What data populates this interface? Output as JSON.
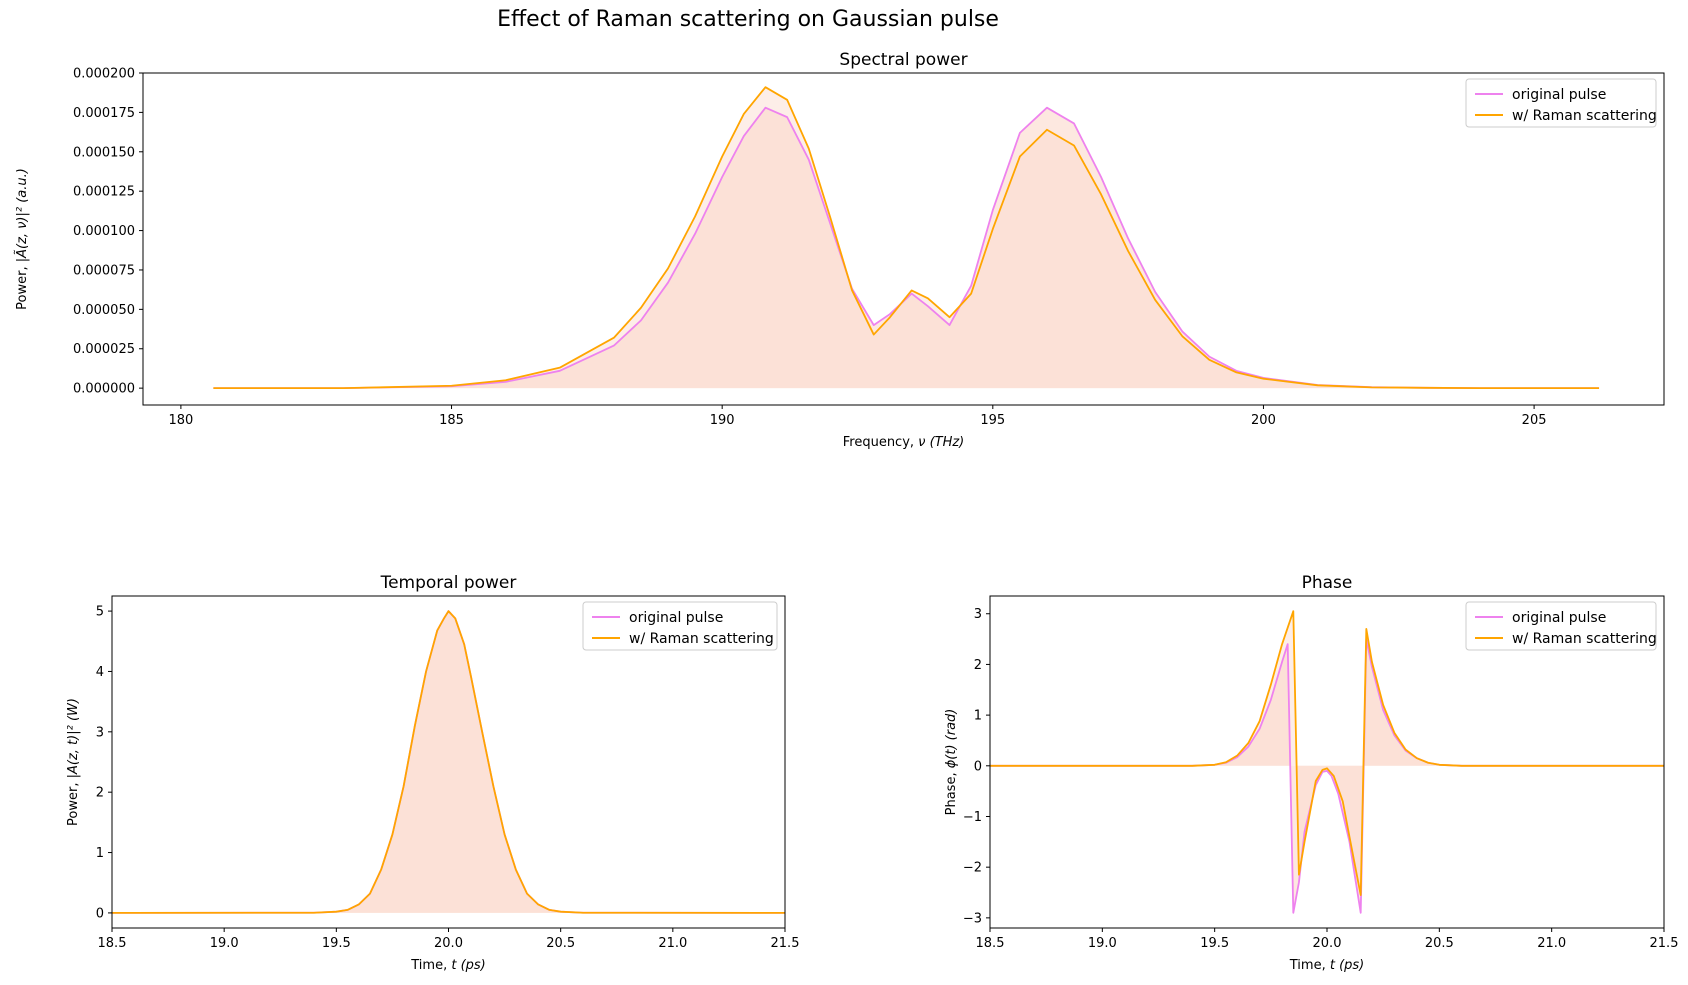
{
  "figure": {
    "suptitle": "Effect of Raman scattering on Gaussian pulse",
    "colors": {
      "original": "#ee82ee",
      "raman": "#ffa500",
      "fill": "#fbd9cc"
    }
  },
  "chart_data": [
    {
      "id": "spectral",
      "type": "line",
      "title": "Spectral power",
      "xlabel_prefix": "Frequency, ",
      "xlabel_math": "ν (THz)",
      "ylabel_prefix": "Power, ",
      "ylabel_math": "|Ã(z, ν)|² (a.u.)",
      "xlim": [
        179.3,
        207.4
      ],
      "ylim": [
        -1.07e-05,
        0.0002
      ],
      "xticks": [
        180,
        185,
        190,
        195,
        200,
        205
      ],
      "yticks": [
        0,
        2.5e-05,
        5e-05,
        7.5e-05,
        0.0001,
        0.000125,
        0.00015,
        0.000175,
        0.0002
      ],
      "ytick_labels": [
        "0.000000",
        "0.000025",
        "0.000050",
        "0.000075",
        "0.000100",
        "0.000125",
        "0.000150",
        "0.000175",
        "0.000200"
      ],
      "legend": {
        "position": "upper right",
        "labels": [
          "original pulse",
          "w/ Raman scattering"
        ]
      },
      "series": [
        {
          "name": "original pulse",
          "color": "#ee82ee",
          "x": [
            180.6,
            183,
            185,
            186,
            187,
            188,
            188.5,
            189,
            189.5,
            190,
            190.4,
            190.8,
            191.2,
            191.6,
            192,
            192.4,
            192.8,
            193.1,
            193.5,
            193.8,
            194.2,
            194.6,
            195,
            195.5,
            196,
            196.5,
            197,
            197.5,
            198,
            198.5,
            199,
            199.5,
            200,
            201,
            202,
            203,
            204,
            206.2
          ],
          "y": [
            0,
            0,
            1.2e-06,
            4e-06,
            1.1e-05,
            2.7e-05,
            4.3e-05,
            6.7e-05,
            9.8e-05,
            0.000134,
            0.00016,
            0.000178,
            0.000172,
            0.000145,
            0.000104,
            6.3e-05,
            4e-05,
            4.7e-05,
            6e-05,
            5.2e-05,
            4e-05,
            6.5e-05,
            0.000113,
            0.000162,
            0.000178,
            0.000168,
            0.000134,
            9.5e-05,
            6.1e-05,
            3.6e-05,
            2e-05,
            1.1e-05,
            6.5e-06,
            2e-06,
            6e-07,
            2e-07,
            0,
            0
          ]
        },
        {
          "name": "w/ Raman scattering",
          "color": "#ffa500",
          "x": [
            180.6,
            183,
            185,
            186,
            187,
            188,
            188.5,
            189,
            189.5,
            190,
            190.4,
            190.8,
            191.2,
            191.6,
            192,
            192.4,
            192.8,
            193.1,
            193.5,
            193.8,
            194.2,
            194.6,
            195,
            195.5,
            196,
            196.5,
            197,
            197.5,
            198,
            198.5,
            199,
            199.5,
            200,
            201,
            202,
            203,
            204,
            206.2
          ],
          "y": [
            0,
            0,
            1.5e-06,
            5e-06,
            1.3e-05,
            3.2e-05,
            5.1e-05,
            7.6e-05,
            0.000109,
            0.000147,
            0.000174,
            0.000191,
            0.000183,
            0.000152,
            0.000108,
            6.2e-05,
            3.4e-05,
            4.5e-05,
            6.2e-05,
            5.7e-05,
            4.5e-05,
            6e-05,
            0.000101,
            0.000147,
            0.000164,
            0.000154,
            0.000123,
            8.7e-05,
            5.6e-05,
            3.3e-05,
            1.8e-05,
            1e-05,
            6e-06,
            1.8e-06,
            5e-07,
            2e-07,
            0,
            0
          ]
        }
      ]
    },
    {
      "id": "temporal",
      "type": "line",
      "title": "Temporal power",
      "xlabel_prefix": "Time, ",
      "xlabel_math": "t (ps)",
      "ylabel_prefix": "Power, ",
      "ylabel_math": "|A(z, t)|² (W)",
      "xlim": [
        18.5,
        21.5
      ],
      "ylim": [
        -0.25,
        5.25
      ],
      "xticks": [
        18.5,
        19.0,
        19.5,
        20.0,
        20.5,
        21.0,
        21.5
      ],
      "xtick_labels": [
        "18.5",
        "19.0",
        "19.5",
        "20.0",
        "20.5",
        "21.0",
        "21.5"
      ],
      "yticks": [
        0,
        1,
        2,
        3,
        4,
        5
      ],
      "ytick_labels": [
        "0",
        "1",
        "2",
        "3",
        "4",
        "5"
      ],
      "legend": {
        "position": "upper right",
        "labels": [
          "original pulse",
          "w/ Raman scattering"
        ]
      },
      "series": [
        {
          "name": "original pulse",
          "color": "#ee82ee",
          "x": [
            18.5,
            19.4,
            19.5,
            19.55,
            19.6,
            19.65,
            19.7,
            19.75,
            19.8,
            19.85,
            19.9,
            19.95,
            19.98,
            20.0,
            20.03,
            20.07,
            20.1,
            20.15,
            20.2,
            20.25,
            20.3,
            20.35,
            20.4,
            20.45,
            20.5,
            20.6,
            21.5
          ],
          "y": [
            0,
            0.003,
            0.02,
            0.05,
            0.14,
            0.32,
            0.72,
            1.3,
            2.1,
            3.1,
            4.0,
            4.68,
            4.88,
            5.0,
            4.88,
            4.45,
            3.92,
            3.0,
            2.1,
            1.3,
            0.72,
            0.32,
            0.14,
            0.05,
            0.02,
            0.003,
            0
          ]
        },
        {
          "name": "w/ Raman scattering",
          "color": "#ffa500",
          "x": [
            18.5,
            19.4,
            19.5,
            19.55,
            19.6,
            19.65,
            19.7,
            19.75,
            19.8,
            19.85,
            19.9,
            19.95,
            19.98,
            20.0,
            20.03,
            20.07,
            20.1,
            20.15,
            20.2,
            20.25,
            20.3,
            20.35,
            20.4,
            20.45,
            20.5,
            20.6,
            21.5
          ],
          "y": [
            0,
            0.003,
            0.02,
            0.05,
            0.14,
            0.32,
            0.72,
            1.3,
            2.1,
            3.1,
            4.0,
            4.68,
            4.88,
            5.0,
            4.88,
            4.45,
            3.92,
            3.0,
            2.1,
            1.3,
            0.72,
            0.32,
            0.14,
            0.05,
            0.02,
            0.003,
            0
          ]
        }
      ]
    },
    {
      "id": "phase",
      "type": "line",
      "title": "Phase",
      "xlabel_prefix": "Time, ",
      "xlabel_math": "t (ps)",
      "ylabel_prefix": "Phase, ",
      "ylabel_math": "ϕ(t) (rad)",
      "xlim": [
        18.5,
        21.5
      ],
      "ylim": [
        -3.2,
        3.35
      ],
      "xticks": [
        18.5,
        19.0,
        19.5,
        20.0,
        20.5,
        21.0,
        21.5
      ],
      "xtick_labels": [
        "18.5",
        "19.0",
        "19.5",
        "20.0",
        "20.5",
        "21.0",
        "21.5"
      ],
      "yticks": [
        -3,
        -2,
        -1,
        0,
        1,
        2,
        3
      ],
      "ytick_labels": [
        "−3",
        "−2",
        "−1",
        "0",
        "1",
        "2",
        "3"
      ],
      "legend": {
        "position": "upper right",
        "labels": [
          "original pulse",
          "w/ Raman scattering"
        ]
      },
      "series": [
        {
          "name": "original pulse",
          "color": "#ee82ee",
          "x": [
            18.5,
            19.4,
            19.5,
            19.55,
            19.6,
            19.65,
            19.7,
            19.75,
            19.8,
            19.825,
            19.85,
            19.875,
            19.9,
            19.95,
            19.98,
            20.0,
            20.02,
            20.05,
            20.1,
            20.15,
            20.175,
            20.2,
            20.25,
            20.3,
            20.35,
            20.4,
            20.45,
            20.5,
            20.6,
            21.5
          ],
          "y": [
            0,
            0,
            0.02,
            0.06,
            0.17,
            0.38,
            0.73,
            1.3,
            2.05,
            2.4,
            -2.9,
            -2.3,
            -1.3,
            -0.38,
            -0.12,
            -0.1,
            -0.2,
            -0.55,
            -1.5,
            -2.9,
            2.5,
            1.95,
            1.1,
            0.6,
            0.3,
            0.15,
            0.06,
            0.02,
            0,
            0
          ]
        },
        {
          "name": "w/ Raman scattering",
          "color": "#ffa500",
          "x": [
            18.5,
            19.4,
            19.5,
            19.55,
            19.6,
            19.65,
            19.7,
            19.75,
            19.8,
            19.85,
            19.875,
            19.9,
            19.95,
            19.98,
            20.0,
            20.03,
            20.07,
            20.1,
            20.15,
            20.175,
            20.2,
            20.25,
            20.3,
            20.35,
            20.4,
            20.45,
            20.5,
            20.6,
            21.5
          ],
          "y": [
            0,
            0,
            0.02,
            0.07,
            0.2,
            0.45,
            0.88,
            1.6,
            2.4,
            3.05,
            -2.15,
            -1.5,
            -0.3,
            -0.08,
            -0.05,
            -0.2,
            -0.7,
            -1.4,
            -2.55,
            2.7,
            2.05,
            1.2,
            0.65,
            0.32,
            0.15,
            0.06,
            0.02,
            0,
            0
          ]
        }
      ]
    }
  ]
}
